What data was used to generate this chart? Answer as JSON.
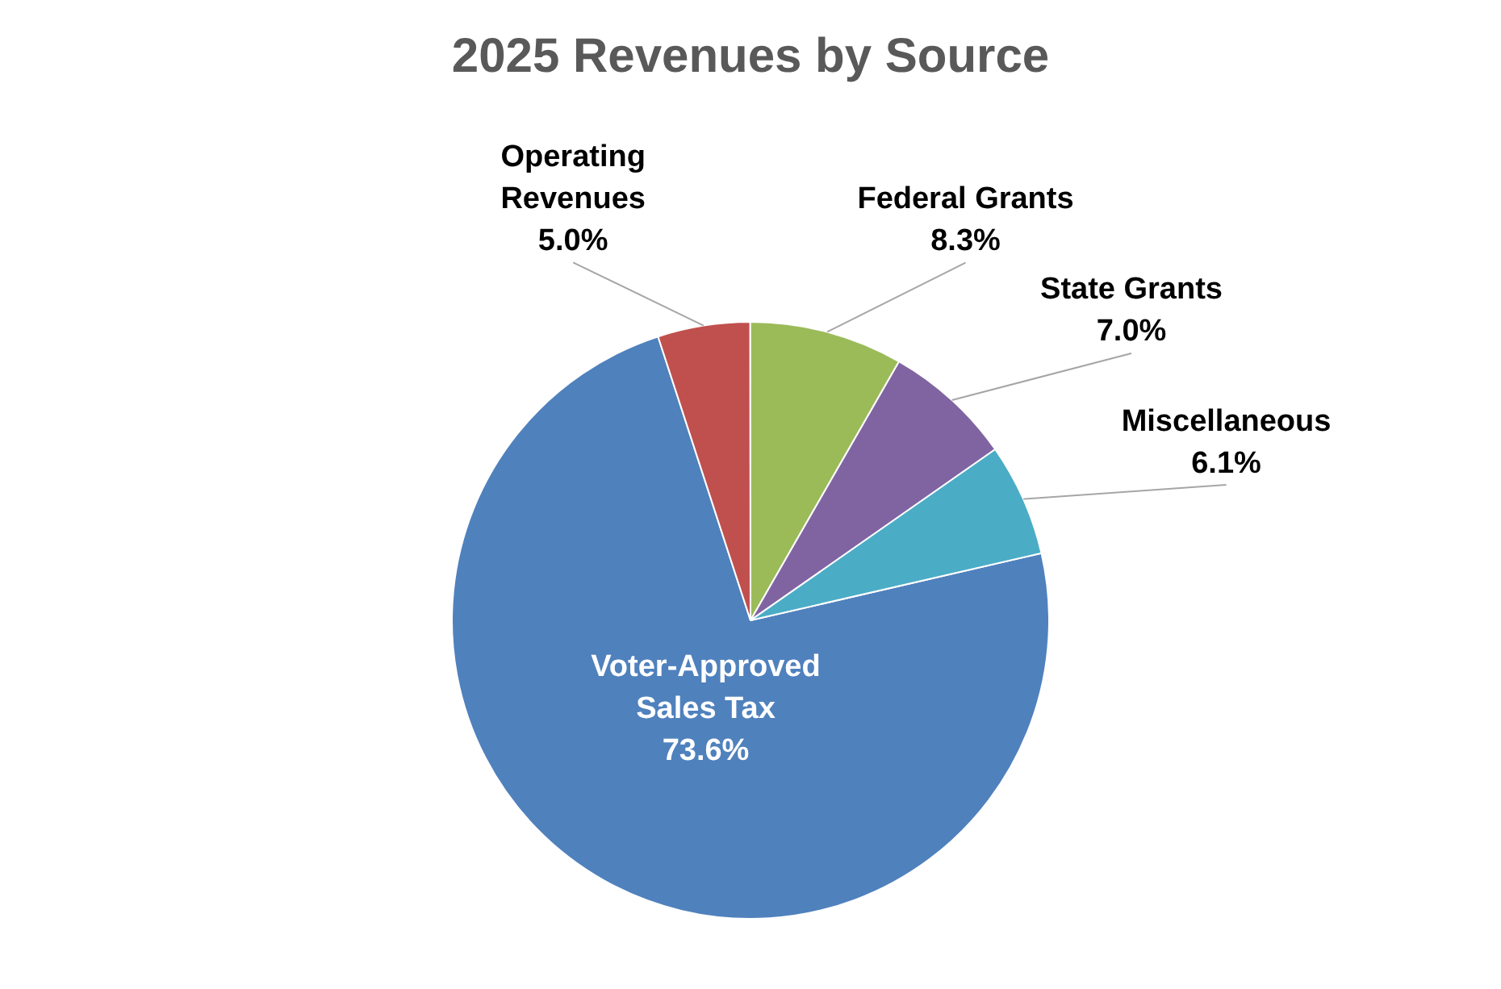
{
  "chart_data": {
    "type": "pie",
    "title": "2025 Revenues by Source",
    "categories": [
      "Voter-Approved Sales Tax",
      "Operating Revenues",
      "Federal Grants",
      "State Grants",
      "Miscellaneous"
    ],
    "values": [
      73.6,
      5.0,
      8.3,
      7.0,
      6.1
    ],
    "colors": [
      "#4f81bd",
      "#c0504d",
      "#9bbb59",
      "#8064a2",
      "#4bacc6"
    ],
    "value_labels": [
      "73.6%",
      "5.0%",
      "8.3%",
      "7.0%",
      "6.1%"
    ],
    "legend": false
  }
}
